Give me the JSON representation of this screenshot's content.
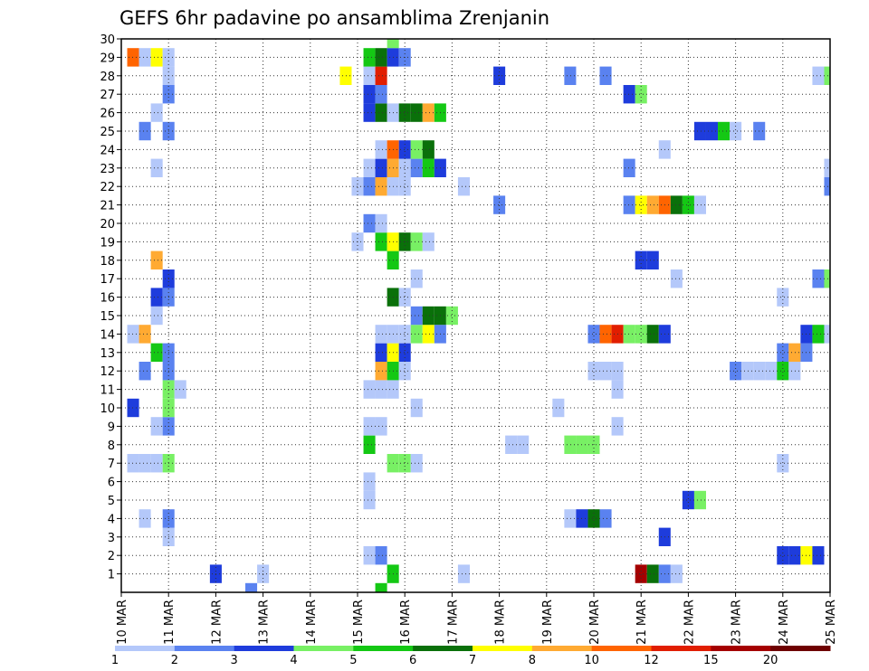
{
  "chart_data": {
    "type": "heatmap",
    "title": "GEFS 6hr padavine po ansamblima Zrenjanin",
    "xlabel": "",
    "ylabel": "",
    "x_tick_labels": [
      "10 MAR",
      "11 MAR",
      "12 MAR",
      "13 MAR",
      "14 MAR",
      "15 MAR",
      "16 MAR",
      "17 MAR",
      "18 MAR",
      "19 MAR",
      "20 MAR",
      "21 MAR",
      "22 MAR",
      "23 MAR",
      "24 MAR",
      "25 MAR"
    ],
    "y_tick_labels": [
      "1",
      "2",
      "3",
      "4",
      "5",
      "6",
      "7",
      "8",
      "9",
      "10",
      "11",
      "12",
      "13",
      "14",
      "15",
      "16",
      "17",
      "18",
      "19",
      "20",
      "21",
      "22",
      "23",
      "24",
      "25",
      "26",
      "27",
      "28",
      "29",
      "30"
    ],
    "x_units": "6-hour steps from 10 MAR 00Z",
    "x_range": [
      0,
      60
    ],
    "y_range": [
      0,
      30
    ],
    "grid": true,
    "legend": {
      "placement": "bottom",
      "thresholds": [
        "1",
        "2",
        "3",
        "4",
        "5",
        "6",
        "7",
        "8",
        "10",
        "12",
        "15",
        "20"
      ],
      "colors": [
        "#b4c8fa",
        "#5a82f0",
        "#1e3cdc",
        "#78f064",
        "#14c814",
        "#0a700a",
        "#ffff00",
        "#ffaa32",
        "#ff6400",
        "#e11e00",
        "#a50000",
        "#6e0000"
      ]
    },
    "cells": [
      [
        11,
        0,
        2
      ],
      [
        22,
        0,
        5
      ],
      [
        8,
        1,
        3
      ],
      [
        12,
        1,
        1
      ],
      [
        23,
        1,
        5
      ],
      [
        29,
        1,
        1
      ],
      [
        44,
        1,
        11
      ],
      [
        45,
        1,
        6
      ],
      [
        46,
        1,
        2
      ],
      [
        47,
        1,
        1
      ],
      [
        21,
        2,
        1
      ],
      [
        22,
        2,
        2
      ],
      [
        56,
        2,
        3
      ],
      [
        57,
        2,
        3
      ],
      [
        58,
        2,
        7
      ],
      [
        59,
        2,
        3
      ],
      [
        4,
        3,
        1
      ],
      [
        46,
        3,
        3
      ],
      [
        2,
        4,
        1
      ],
      [
        4,
        4,
        2
      ],
      [
        38,
        4,
        1
      ],
      [
        39,
        4,
        3
      ],
      [
        40,
        4,
        6
      ],
      [
        41,
        4,
        2
      ],
      [
        21,
        5,
        1
      ],
      [
        48,
        5,
        3
      ],
      [
        49,
        5,
        4
      ],
      [
        21,
        6,
        1
      ],
      [
        1,
        7,
        1
      ],
      [
        2,
        7,
        1
      ],
      [
        3,
        7,
        1
      ],
      [
        4,
        7,
        4
      ],
      [
        23,
        7,
        4
      ],
      [
        24,
        7,
        4
      ],
      [
        25,
        7,
        1
      ],
      [
        56,
        7,
        1
      ],
      [
        21,
        8,
        5
      ],
      [
        33,
        8,
        1
      ],
      [
        34,
        8,
        1
      ],
      [
        38,
        8,
        4
      ],
      [
        39,
        8,
        4
      ],
      [
        40,
        8,
        4
      ],
      [
        3,
        9,
        1
      ],
      [
        4,
        9,
        2
      ],
      [
        21,
        9,
        1
      ],
      [
        22,
        9,
        1
      ],
      [
        42,
        9,
        1
      ],
      [
        1,
        10,
        3
      ],
      [
        4,
        10,
        4
      ],
      [
        25,
        10,
        1
      ],
      [
        37,
        10,
        1
      ],
      [
        4,
        11,
        4
      ],
      [
        5,
        11,
        1
      ],
      [
        21,
        11,
        1
      ],
      [
        22,
        11,
        1
      ],
      [
        23,
        11,
        1
      ],
      [
        42,
        11,
        1
      ],
      [
        2,
        12,
        2
      ],
      [
        4,
        12,
        2
      ],
      [
        22,
        12,
        8
      ],
      [
        23,
        12,
        5
      ],
      [
        24,
        12,
        1
      ],
      [
        40,
        12,
        1
      ],
      [
        41,
        12,
        1
      ],
      [
        42,
        12,
        1
      ],
      [
        52,
        12,
        2
      ],
      [
        53,
        12,
        1
      ],
      [
        54,
        12,
        1
      ],
      [
        55,
        12,
        1
      ],
      [
        56,
        12,
        5
      ],
      [
        57,
        12,
        1
      ],
      [
        3,
        13,
        5
      ],
      [
        4,
        13,
        2
      ],
      [
        22,
        13,
        3
      ],
      [
        23,
        13,
        7
      ],
      [
        24,
        13,
        3
      ],
      [
        56,
        13,
        2
      ],
      [
        57,
        13,
        8
      ],
      [
        58,
        13,
        2
      ],
      [
        1,
        14,
        1
      ],
      [
        2,
        14,
        8
      ],
      [
        22,
        14,
        1
      ],
      [
        23,
        14,
        1
      ],
      [
        24,
        14,
        1
      ],
      [
        25,
        14,
        4
      ],
      [
        26,
        14,
        7
      ],
      [
        27,
        14,
        2
      ],
      [
        40,
        14,
        2
      ],
      [
        41,
        14,
        9
      ],
      [
        42,
        14,
        10
      ],
      [
        43,
        14,
        4
      ],
      [
        44,
        14,
        4
      ],
      [
        45,
        14,
        6
      ],
      [
        46,
        14,
        3
      ],
      [
        58,
        14,
        3
      ],
      [
        59,
        14,
        5
      ],
      [
        60,
        14,
        1
      ],
      [
        25,
        15,
        2
      ],
      [
        26,
        15,
        6
      ],
      [
        27,
        15,
        6
      ],
      [
        28,
        15,
        4
      ],
      [
        3,
        15,
        1
      ],
      [
        56,
        16,
        1
      ],
      [
        3,
        16,
        3
      ],
      [
        4,
        16,
        2
      ],
      [
        23,
        16,
        6
      ],
      [
        24,
        16,
        1
      ],
      [
        4,
        17,
        3
      ],
      [
        25,
        17,
        1
      ],
      [
        47,
        17,
        1
      ],
      [
        59,
        17,
        2
      ],
      [
        60,
        17,
        4
      ],
      [
        3,
        18,
        8
      ],
      [
        23,
        18,
        5
      ],
      [
        44,
        18,
        3
      ],
      [
        45,
        18,
        3
      ],
      [
        20,
        19,
        1
      ],
      [
        22,
        19,
        5
      ],
      [
        23,
        19,
        7
      ],
      [
        24,
        19,
        6
      ],
      [
        25,
        19,
        4
      ],
      [
        26,
        19,
        1
      ],
      [
        21,
        20,
        2
      ],
      [
        22,
        20,
        1
      ],
      [
        32,
        21,
        2
      ],
      [
        43,
        21,
        2
      ],
      [
        44,
        21,
        7
      ],
      [
        45,
        21,
        8
      ],
      [
        46,
        21,
        9
      ],
      [
        47,
        21,
        6
      ],
      [
        48,
        21,
        5
      ],
      [
        49,
        21,
        1
      ],
      [
        20,
        22,
        1
      ],
      [
        21,
        22,
        2
      ],
      [
        22,
        22,
        8
      ],
      [
        23,
        22,
        1
      ],
      [
        24,
        22,
        1
      ],
      [
        29,
        22,
        1
      ],
      [
        60,
        22,
        2
      ],
      [
        3,
        23,
        1
      ],
      [
        21,
        23,
        1
      ],
      [
        22,
        23,
        3
      ],
      [
        23,
        23,
        8
      ],
      [
        24,
        23,
        1
      ],
      [
        25,
        23,
        2
      ],
      [
        26,
        23,
        5
      ],
      [
        27,
        23,
        3
      ],
      [
        43,
        23,
        2
      ],
      [
        60,
        23,
        1
      ],
      [
        22,
        24,
        1
      ],
      [
        23,
        24,
        9
      ],
      [
        24,
        24,
        3
      ],
      [
        25,
        24,
        4
      ],
      [
        26,
        24,
        6
      ],
      [
        46,
        24,
        1
      ],
      [
        2,
        25,
        2
      ],
      [
        4,
        25,
        2
      ],
      [
        49,
        25,
        3
      ],
      [
        50,
        25,
        3
      ],
      [
        51,
        25,
        5
      ],
      [
        52,
        25,
        1
      ],
      [
        54,
        25,
        2
      ],
      [
        3,
        26,
        1
      ],
      [
        21,
        26,
        3
      ],
      [
        22,
        26,
        6
      ],
      [
        23,
        26,
        1
      ],
      [
        24,
        26,
        6
      ],
      [
        25,
        26,
        6
      ],
      [
        26,
        26,
        8
      ],
      [
        27,
        26,
        5
      ],
      [
        4,
        27,
        2
      ],
      [
        21,
        27,
        3
      ],
      [
        22,
        27,
        2
      ],
      [
        43,
        27,
        3
      ],
      [
        44,
        27,
        4
      ],
      [
        4,
        28,
        1
      ],
      [
        19,
        28,
        7
      ],
      [
        21,
        28,
        1
      ],
      [
        22,
        28,
        10
      ],
      [
        32,
        28,
        3
      ],
      [
        38,
        28,
        2
      ],
      [
        41,
        28,
        2
      ],
      [
        59,
        28,
        1
      ],
      [
        60,
        28,
        4
      ],
      [
        1,
        29,
        9
      ],
      [
        2,
        29,
        1
      ],
      [
        3,
        29,
        7
      ],
      [
        4,
        29,
        1
      ],
      [
        21,
        29,
        5
      ],
      [
        22,
        29,
        6
      ],
      [
        23,
        29,
        3
      ],
      [
        24,
        29,
        2
      ],
      [
        23,
        30,
        4
      ]
    ]
  }
}
